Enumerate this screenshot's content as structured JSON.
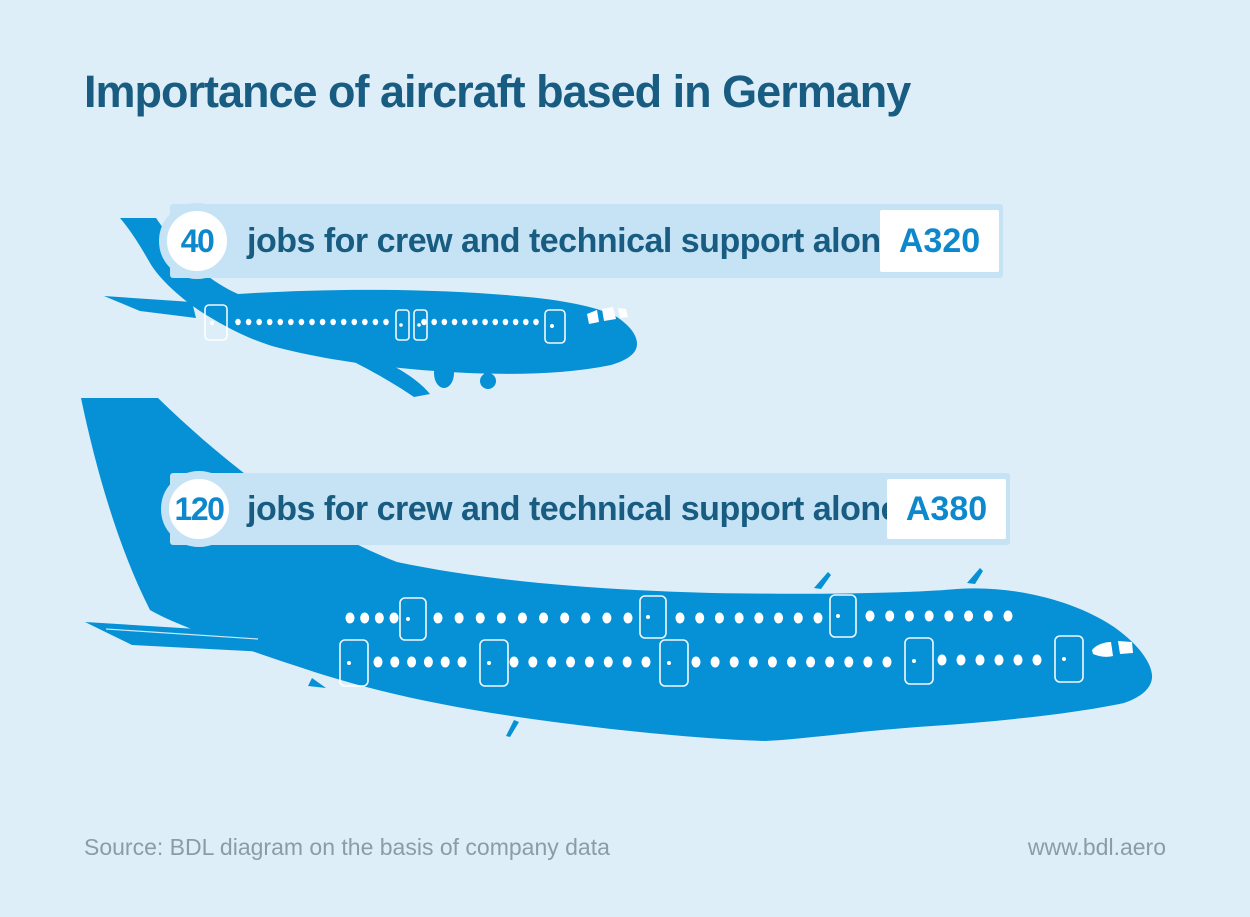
{
  "title": "Importance of aircraft based in Germany",
  "colors": {
    "background": "#ddeef8",
    "aircraft_blue": "#0690d5",
    "banner_background": "#c5e3f4",
    "accent_blue": "#0e88cd",
    "heading_text": "#195c82",
    "footer_text": "#8d9ba7"
  },
  "rows": [
    {
      "count": "40",
      "label": "jobs for crew and technical support alone",
      "model": "A320"
    },
    {
      "count": "120",
      "label": "jobs for crew and technical support alone",
      "model": "A380"
    }
  ],
  "footer": {
    "source": "Source: BDL diagram on the basis of company data",
    "site": "www.bdl.aero"
  }
}
